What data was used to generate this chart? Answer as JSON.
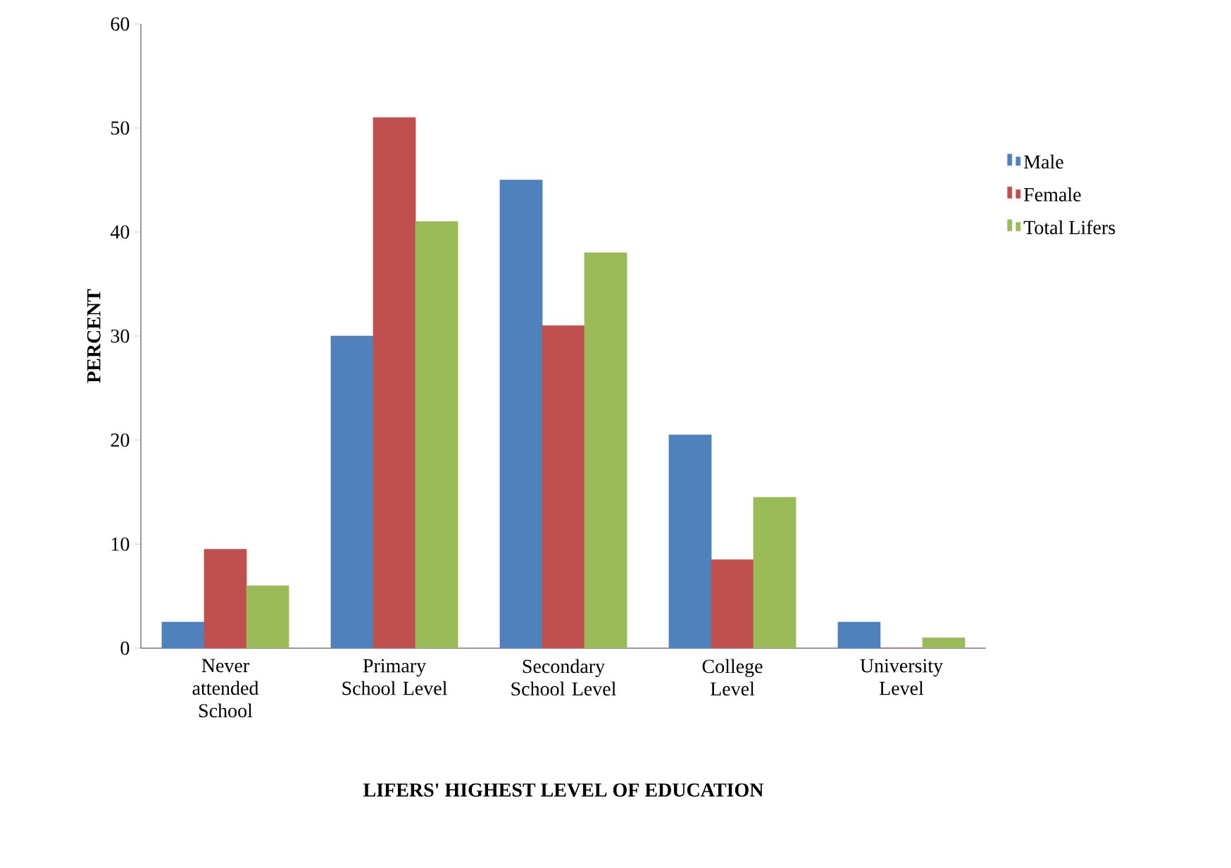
{
  "chart_data": {
    "type": "bar",
    "xlabel": "LIFERS' HIGHEST  LEVEL OF EDUCATION",
    "ylabel": "PERCENT",
    "categories": [
      "Never attended School",
      "Primary School Level",
      "Secondary School Level",
      "College Level",
      "University Level"
    ],
    "series": [
      {
        "name": "Male",
        "color": "#4f81bd",
        "values": [
          2.5,
          30,
          45,
          20.5,
          2.5
        ]
      },
      {
        "name": "Female",
        "color": "#c0504d",
        "values": [
          9.5,
          51,
          31,
          8.5,
          0
        ]
      },
      {
        "name": "Total Lifers",
        "color": "#9bbb59",
        "values": [
          6,
          41,
          38,
          14.5,
          1
        ]
      }
    ],
    "ylim": [
      0,
      60
    ],
    "yticks": [
      0,
      10,
      20,
      30,
      40,
      50,
      60
    ],
    "grid": false,
    "legend": "right"
  }
}
